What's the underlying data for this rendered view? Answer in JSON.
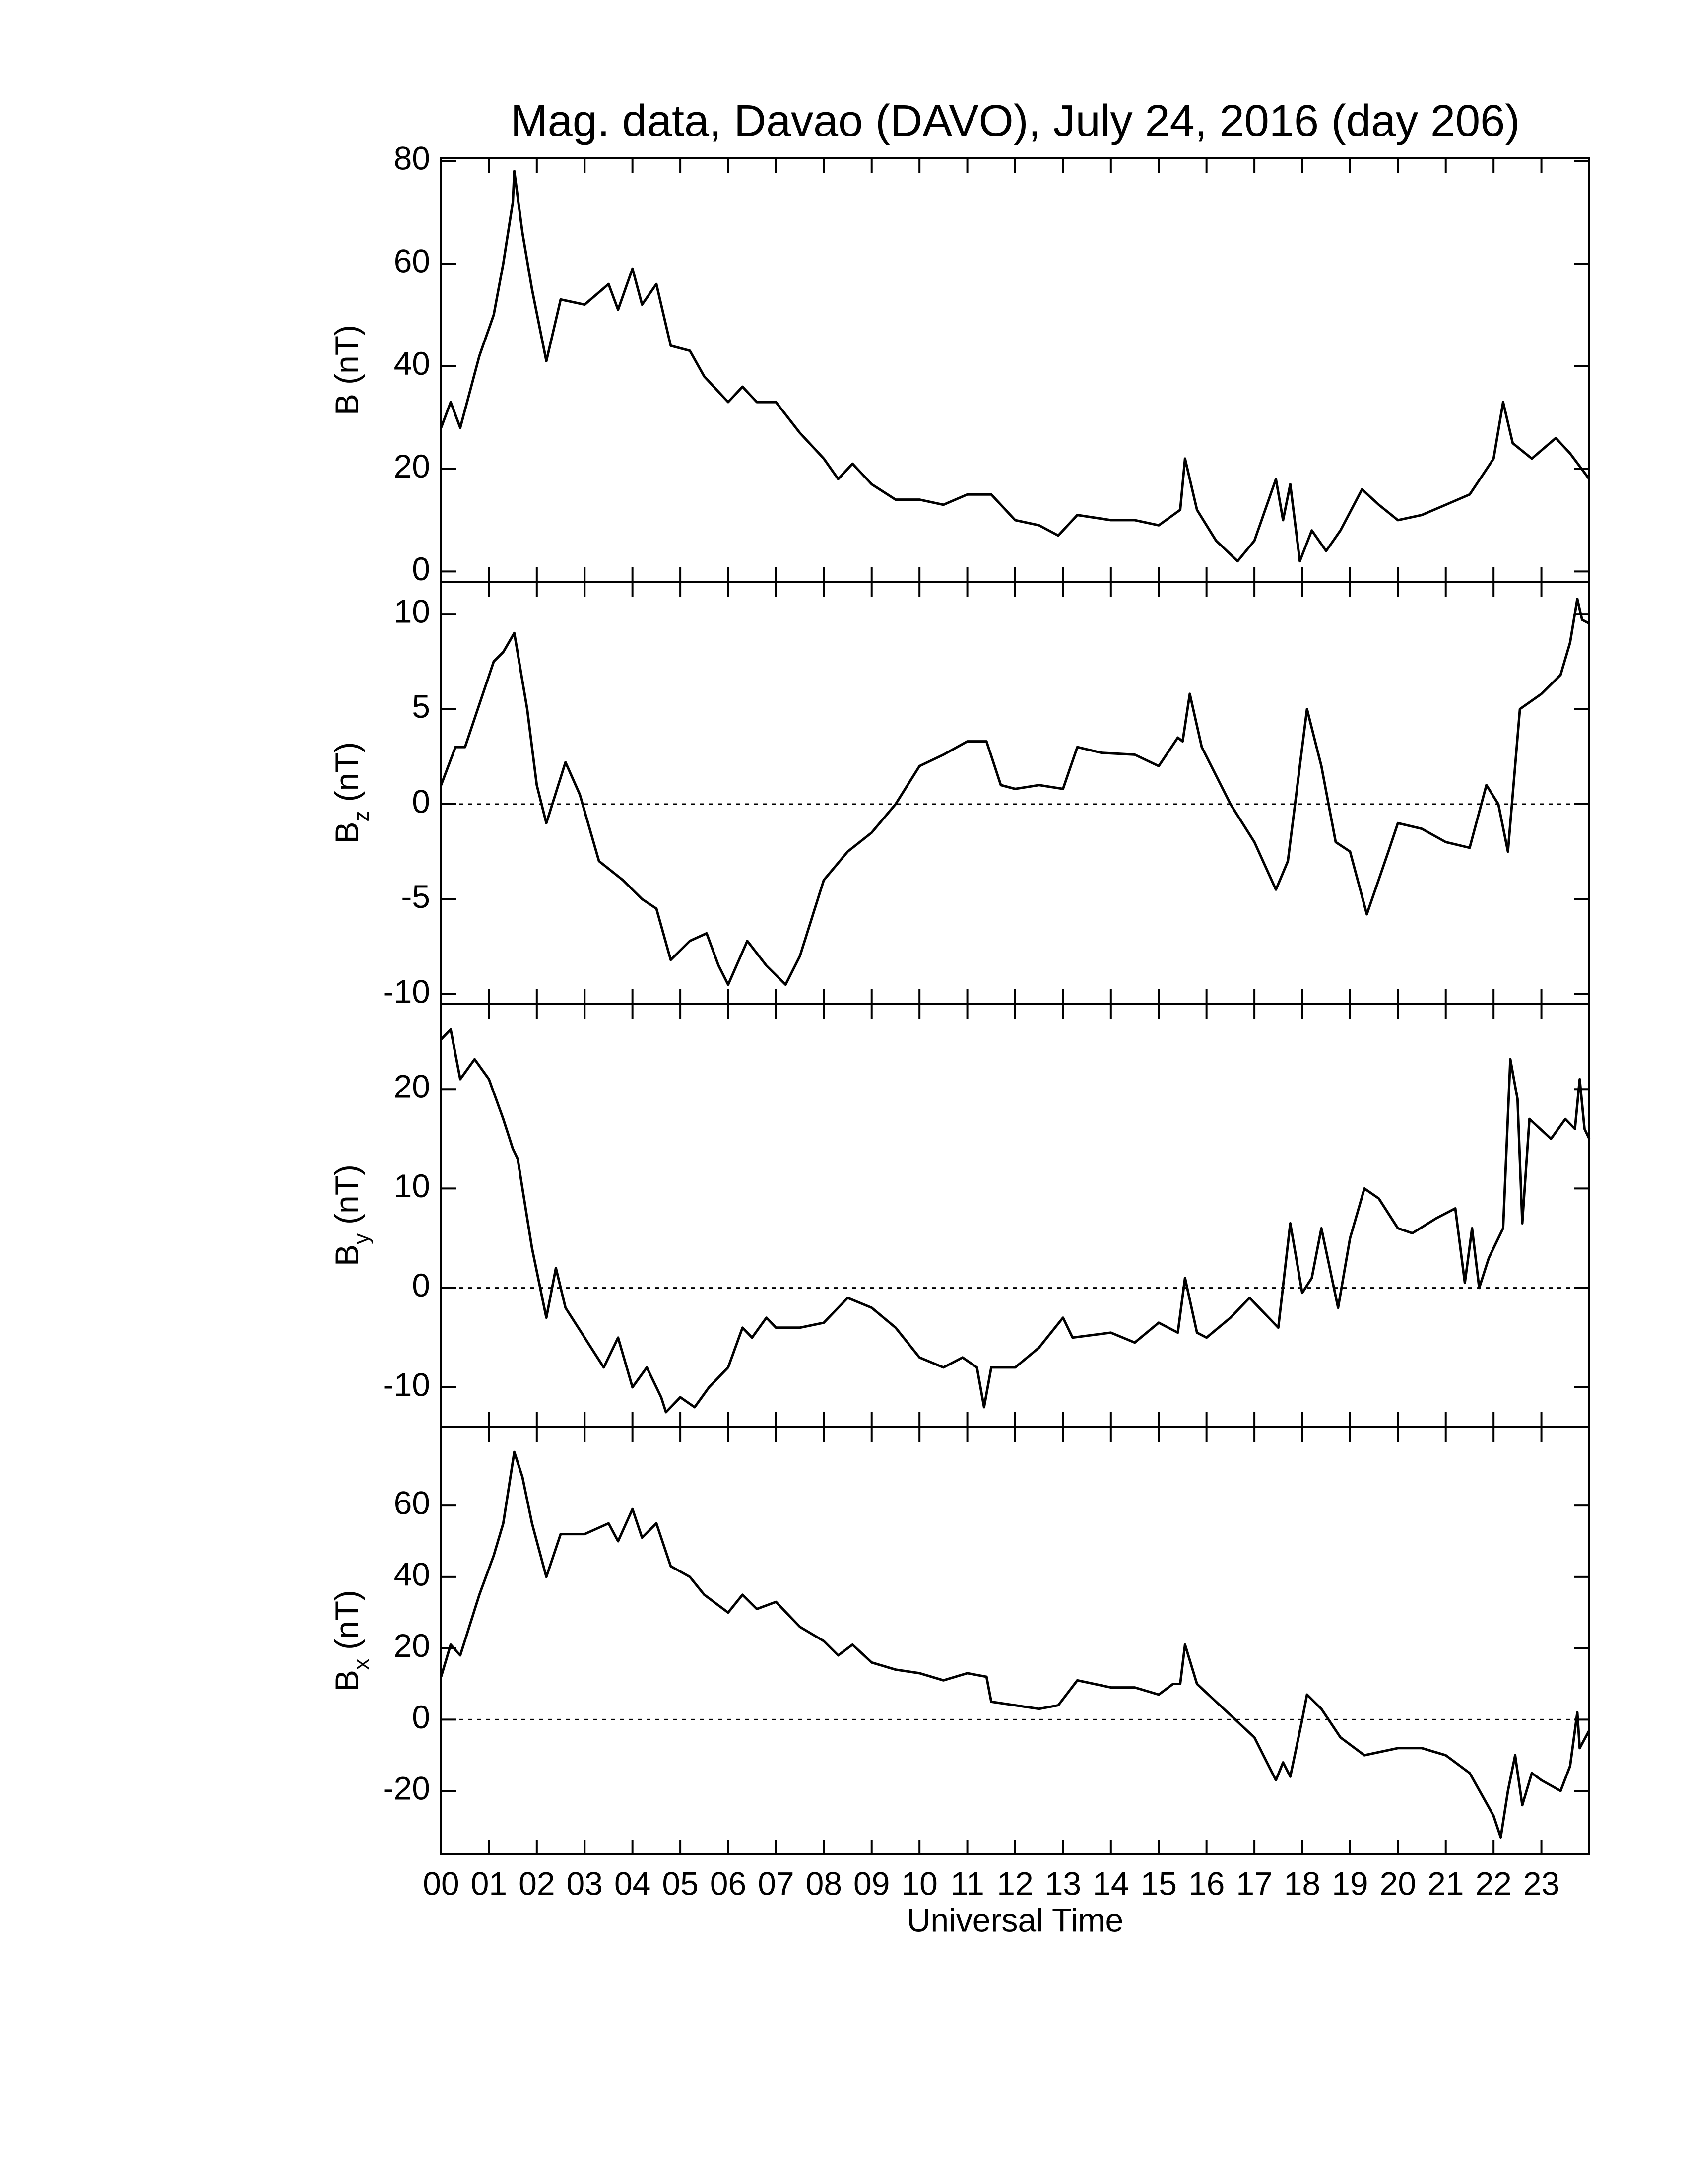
{
  "chart_data": [
    {
      "type": "line",
      "title": "Mag. data, Davao (DAVO), July 24, 2016 (day 206)",
      "ylabel": "B",
      "ylabel_unit": "(nT)",
      "color": "#000000",
      "zero_line": false,
      "xlim": [
        0,
        24
      ],
      "ylim": [
        -2,
        80.5
      ],
      "yticks": [
        0,
        20,
        40,
        60,
        80
      ],
      "x": [
        0,
        0.2,
        0.4,
        0.8,
        1.1,
        1.3,
        1.5,
        1.53,
        1.7,
        1.9,
        2.2,
        2.5,
        3.0,
        3.5,
        3.7,
        4.0,
        4.2,
        4.5,
        4.8,
        5.2,
        5.5,
        6.0,
        6.3,
        6.6,
        7.0,
        7.5,
        8.0,
        8.3,
        8.6,
        9.0,
        9.5,
        10.0,
        10.5,
        11.0,
        11.5,
        12.0,
        12.5,
        12.9,
        13.3,
        14.0,
        14.5,
        15.0,
        15.3,
        15.45,
        15.55,
        15.8,
        16.2,
        16.65,
        17.0,
        17.45,
        17.6,
        17.75,
        17.95,
        18.2,
        18.5,
        18.8,
        19.25,
        19.6,
        20.0,
        20.5,
        21.0,
        21.5,
        22.0,
        22.2,
        22.4,
        22.8,
        23.3,
        23.6,
        24.0
      ],
      "values": [
        28,
        33,
        28,
        42,
        50,
        60,
        72,
        78,
        66,
        55,
        41,
        53,
        52,
        56,
        51,
        59,
        52,
        56,
        44,
        43,
        38,
        33,
        36,
        33,
        33,
        27,
        22,
        18,
        21,
        17,
        14,
        14,
        13,
        15,
        15,
        10,
        9,
        7,
        11,
        10,
        10,
        9,
        11,
        12,
        22,
        12,
        6,
        2,
        6,
        18,
        10,
        17,
        2,
        8,
        4,
        8,
        16,
        13,
        10,
        11,
        13,
        15,
        22,
        33,
        25,
        22,
        26,
        23,
        18
      ]
    },
    {
      "type": "line",
      "ylabel": "B",
      "ylabel_sub": "z",
      "ylabel_unit": "(nT)",
      "color": "#000000",
      "zero_line": true,
      "xlim": [
        0,
        24
      ],
      "ylim": [
        -10.5,
        11.7
      ],
      "yticks": [
        -10,
        -5,
        0,
        5,
        10
      ],
      "x": [
        0,
        0.3,
        0.5,
        0.9,
        1.1,
        1.3,
        1.53,
        1.8,
        2.0,
        2.2,
        2.6,
        2.9,
        3.3,
        3.8,
        4.2,
        4.5,
        4.8,
        5.2,
        5.55,
        5.8,
        6.0,
        6.4,
        6.8,
        7.2,
        7.5,
        8.0,
        8.5,
        9.0,
        9.5,
        10.0,
        10.5,
        11.0,
        11.4,
        11.7,
        12.0,
        12.5,
        13.0,
        13.3,
        13.8,
        14.5,
        15.0,
        15.4,
        15.5,
        15.65,
        15.9,
        16.5,
        17.0,
        17.45,
        17.7,
        18.1,
        18.4,
        18.7,
        19.0,
        19.35,
        19.8,
        20.0,
        20.5,
        21.0,
        21.5,
        21.85,
        22.1,
        22.3,
        22.55,
        23.0,
        23.4,
        23.6,
        23.75,
        23.85,
        24.0
      ],
      "values": [
        1,
        3,
        3,
        6,
        7.5,
        8,
        9,
        5,
        1,
        -1,
        2.2,
        0.5,
        -3,
        -4,
        -5,
        -5.5,
        -8.2,
        -7.2,
        -6.8,
        -8.5,
        -9.5,
        -7.2,
        -8.5,
        -9.5,
        -8,
        -4,
        -2.5,
        -1.5,
        0,
        2,
        2.6,
        3.3,
        3.3,
        1,
        0.8,
        1,
        0.8,
        3,
        2.7,
        2.6,
        2,
        3.5,
        3.3,
        5.8,
        3,
        0,
        -2,
        -4.5,
        -3,
        5,
        2,
        -2,
        -2.5,
        -5.8,
        -2.5,
        -1,
        -1.3,
        -2,
        -2.3,
        1,
        0,
        -2.5,
        5,
        5.8,
        6.8,
        8.5,
        10.8,
        9.7,
        9.5
      ]
    },
    {
      "type": "line",
      "ylabel": "B",
      "ylabel_sub": "y",
      "ylabel_unit": "(nT)",
      "color": "#000000",
      "zero_line": true,
      "xlim": [
        0,
        24
      ],
      "ylim": [
        -14,
        28.6
      ],
      "yticks": [
        -10,
        0,
        10,
        20
      ],
      "x": [
        0,
        0.2,
        0.4,
        0.7,
        1.0,
        1.3,
        1.5,
        1.6,
        1.9,
        2.2,
        2.4,
        2.6,
        3.0,
        3.4,
        3.7,
        4.0,
        4.3,
        4.6,
        4.7,
        5.0,
        5.3,
        5.6,
        6.0,
        6.3,
        6.5,
        6.8,
        7.0,
        7.5,
        8.0,
        8.5,
        9.0,
        9.5,
        10.0,
        10.5,
        10.9,
        11.2,
        11.35,
        11.5,
        12.0,
        12.5,
        13.0,
        13.2,
        14.0,
        14.5,
        15.0,
        15.4,
        15.55,
        15.8,
        16.0,
        16.5,
        16.9,
        17.3,
        17.5,
        17.75,
        18.0,
        18.2,
        18.4,
        18.75,
        19.0,
        19.3,
        19.6,
        20.0,
        20.3,
        20.8,
        21.2,
        21.4,
        21.55,
        21.7,
        21.9,
        22.2,
        22.35,
        22.5,
        22.6,
        22.75,
        23.2,
        23.5,
        23.7,
        23.8,
        23.9,
        24.0
      ],
      "values": [
        25,
        26,
        21,
        23,
        21,
        17,
        14,
        13,
        4,
        -3,
        2,
        -2,
        -5,
        -8,
        -5,
        -10,
        -8,
        -11,
        -12.5,
        -11,
        -12,
        -10,
        -8,
        -4,
        -5,
        -3,
        -4,
        -4,
        -3.5,
        -1,
        -2,
        -4,
        -7,
        -8,
        -7,
        -8,
        -12,
        -8,
        -8,
        -6,
        -3,
        -5,
        -4.5,
        -5.5,
        -3.5,
        -4.5,
        1,
        -4.5,
        -5,
        -3,
        -1,
        -3,
        -4,
        6.5,
        -0.5,
        1,
        6,
        -2,
        5,
        10,
        9,
        6,
        5.5,
        7,
        8,
        0.5,
        6,
        0,
        3,
        6,
        23,
        19,
        6.5,
        17,
        15,
        17,
        16,
        21,
        16,
        15
      ]
    },
    {
      "type": "line",
      "ylabel": "B",
      "ylabel_sub": "x",
      "ylabel_unit": "(nT)",
      "color": "#000000",
      "zero_line": true,
      "xlim": [
        0,
        24
      ],
      "ylim": [
        -37.8,
        82
      ],
      "yticks": [
        -20,
        0,
        20,
        40,
        60
      ],
      "xlabel": "Universal Time",
      "xticks": [
        {
          "value": 0,
          "label": "00"
        },
        {
          "value": 1,
          "label": "01"
        },
        {
          "value": 2,
          "label": "02"
        },
        {
          "value": 3,
          "label": "03"
        },
        {
          "value": 4,
          "label": "04"
        },
        {
          "value": 5,
          "label": "05"
        },
        {
          "value": 6,
          "label": "06"
        },
        {
          "value": 7,
          "label": "07"
        },
        {
          "value": 8,
          "label": "08"
        },
        {
          "value": 9,
          "label": "09"
        },
        10,
        11,
        12,
        13,
        14,
        15,
        16,
        17,
        18,
        19,
        20,
        21,
        22,
        23
      ],
      "x": [
        0,
        0.2,
        0.4,
        0.8,
        1.1,
        1.3,
        1.53,
        1.7,
        1.9,
        2.2,
        2.5,
        3.0,
        3.5,
        3.7,
        4.0,
        4.2,
        4.5,
        4.8,
        5.2,
        5.5,
        6.0,
        6.3,
        6.6,
        7.0,
        7.5,
        8.0,
        8.3,
        8.6,
        9.0,
        9.5,
        10.0,
        10.5,
        11.0,
        11.4,
        11.5,
        12.0,
        12.5,
        12.9,
        13.3,
        14.0,
        14.5,
        15.0,
        15.3,
        15.45,
        15.55,
        15.8,
        16.2,
        16.6,
        17.0,
        17.45,
        17.6,
        17.75,
        18.0,
        18.1,
        18.4,
        18.8,
        19.3,
        20.0,
        20.5,
        21.0,
        21.5,
        22.0,
        22.15,
        22.3,
        22.45,
        22.6,
        22.8,
        23.0,
        23.4,
        23.6,
        23.75,
        23.8,
        24.0
      ],
      "values": [
        12,
        21,
        18,
        35,
        46,
        55,
        75,
        68,
        55,
        40,
        52,
        52,
        55,
        50,
        59,
        51,
        55,
        43,
        40,
        35,
        30,
        35,
        31,
        33,
        26,
        22,
        18,
        21,
        16,
        14,
        13,
        11,
        13,
        12,
        5,
        4,
        3,
        4,
        11,
        9,
        9,
        7,
        10,
        10,
        21,
        10,
        5,
        0,
        -5,
        -17,
        -12,
        -16,
        0,
        7,
        3,
        -5,
        -10,
        -8,
        -8,
        -10,
        -15,
        -27,
        -33,
        -20,
        -10,
        -24,
        -15,
        -17,
        -20,
        -13,
        2,
        -8,
        -3
      ]
    }
  ]
}
